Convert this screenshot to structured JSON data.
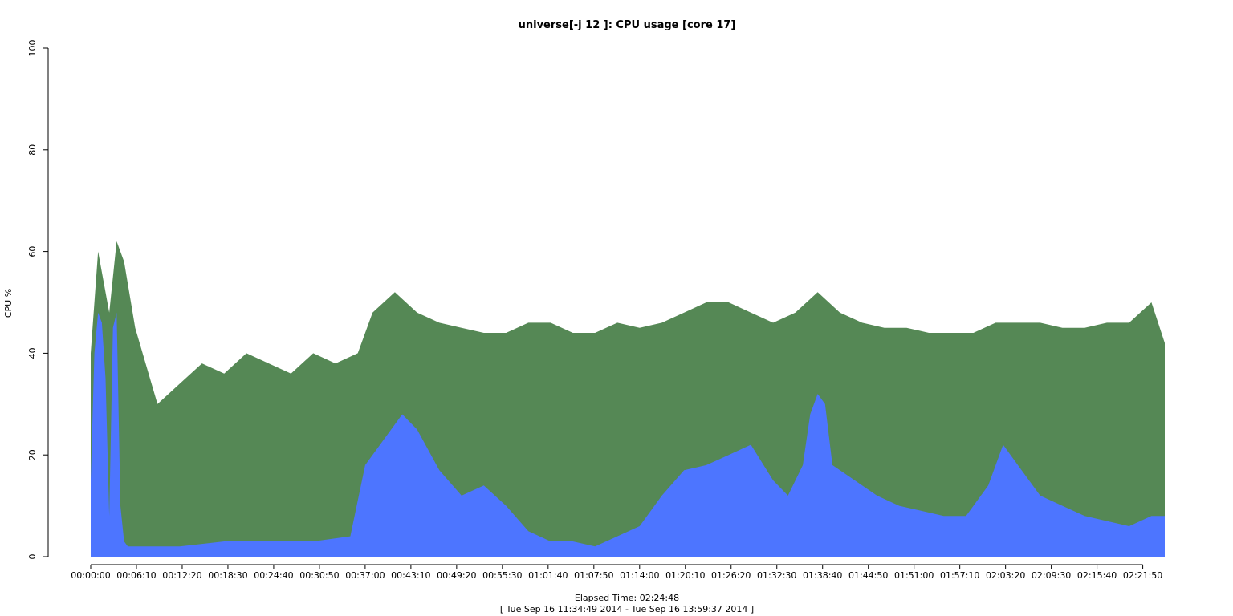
{
  "chart_data": {
    "type": "area",
    "title": "universe[-j 12  ]: CPU usage [core 17]",
    "ylabel": "CPU %",
    "xlabel": "Elapsed Time: 02:24:48",
    "subtitle": "[ Tue Sep 16 11:34:49 2014 - Tue Sep 16 13:59:37 2014 ]",
    "ylim": [
      0,
      100
    ],
    "y_ticks": [
      0,
      20,
      40,
      60,
      80,
      100
    ],
    "xlim_seconds": [
      0,
      8688
    ],
    "x_ticks": [
      "00:00:00",
      "00:06:10",
      "00:12:20",
      "00:18:30",
      "00:24:40",
      "00:30:50",
      "00:37:00",
      "00:43:10",
      "00:49:20",
      "00:55:30",
      "01:01:40",
      "01:07:50",
      "01:14:00",
      "01:20:10",
      "01:26:20",
      "01:32:30",
      "01:38:40",
      "01:44:50",
      "01:51:00",
      "01:57:10",
      "02:03:20",
      "02:09:30",
      "02:15:40",
      "02:21:50"
    ],
    "grid": false,
    "colors": {
      "user": "#4d75ff",
      "total": "#558855"
    },
    "series": [
      {
        "key": "total",
        "x": [
          "00:00:00",
          "00:01:00",
          "00:02:30",
          "00:03:30",
          "00:04:30",
          "00:06:00",
          "00:09:00",
          "00:12:00",
          "00:15:00",
          "00:18:00",
          "00:21:00",
          "00:24:00",
          "00:27:00",
          "00:30:00",
          "00:33:00",
          "00:36:00",
          "00:38:00",
          "00:41:00",
          "00:44:00",
          "00:47:00",
          "00:50:00",
          "00:53:00",
          "00:56:00",
          "00:59:00",
          "01:02:00",
          "01:05:00",
          "01:08:00",
          "01:11:00",
          "01:14:00",
          "01:17:00",
          "01:20:00",
          "01:23:00",
          "01:26:00",
          "01:29:00",
          "01:32:00",
          "01:35:00",
          "01:38:00",
          "01:41:00",
          "01:44:00",
          "01:47:00",
          "01:50:00",
          "01:53:00",
          "01:56:00",
          "01:59:00",
          "02:02:00",
          "02:05:00",
          "02:08:00",
          "02:11:00",
          "02:14:00",
          "02:17:00",
          "02:20:00",
          "02:23:00",
          "02:24:48"
        ],
        "values": [
          40,
          60,
          48,
          62,
          58,
          45,
          30,
          34,
          38,
          36,
          40,
          38,
          36,
          40,
          38,
          40,
          48,
          52,
          48,
          46,
          45,
          44,
          44,
          46,
          46,
          44,
          44,
          46,
          45,
          46,
          48,
          50,
          50,
          48,
          46,
          48,
          52,
          48,
          46,
          45,
          45,
          44,
          44,
          44,
          46,
          46,
          46,
          45,
          45,
          46,
          46,
          50,
          42
        ]
      },
      {
        "key": "user",
        "x": [
          "00:00:00",
          "00:00:30",
          "00:01:00",
          "00:01:30",
          "00:02:00",
          "00:02:30",
          "00:03:00",
          "00:03:30",
          "00:04:00",
          "00:04:30",
          "00:05:00",
          "00:06:00",
          "00:08:00",
          "00:12:00",
          "00:18:00",
          "00:24:00",
          "00:30:00",
          "00:35:00",
          "00:37:00",
          "00:39:00",
          "00:42:00",
          "00:44:00",
          "00:47:00",
          "00:50:00",
          "00:53:00",
          "00:56:00",
          "00:59:00",
          "01:02:00",
          "01:05:00",
          "01:08:00",
          "01:11:00",
          "01:14:00",
          "01:17:00",
          "01:20:00",
          "01:23:00",
          "01:26:00",
          "01:29:00",
          "01:32:00",
          "01:34:00",
          "01:36:00",
          "01:37:00",
          "01:38:00",
          "01:39:00",
          "01:40:00",
          "01:43:00",
          "01:46:00",
          "01:49:00",
          "01:52:00",
          "01:55:00",
          "01:58:00",
          "02:01:00",
          "02:03:00",
          "02:05:00",
          "02:08:00",
          "02:11:00",
          "02:14:00",
          "02:17:00",
          "02:20:00",
          "02:23:00",
          "02:24:48"
        ],
        "values": [
          15,
          40,
          48,
          46,
          35,
          8,
          45,
          48,
          10,
          3,
          2,
          2,
          2,
          2,
          3,
          3,
          3,
          4,
          18,
          22,
          28,
          25,
          17,
          12,
          14,
          10,
          5,
          3,
          3,
          2,
          4,
          6,
          12,
          17,
          18,
          20,
          22,
          15,
          12,
          18,
          28,
          32,
          30,
          18,
          15,
          12,
          10,
          9,
          8,
          8,
          14,
          22,
          18,
          12,
          10,
          8,
          7,
          6,
          8,
          8
        ]
      }
    ]
  }
}
